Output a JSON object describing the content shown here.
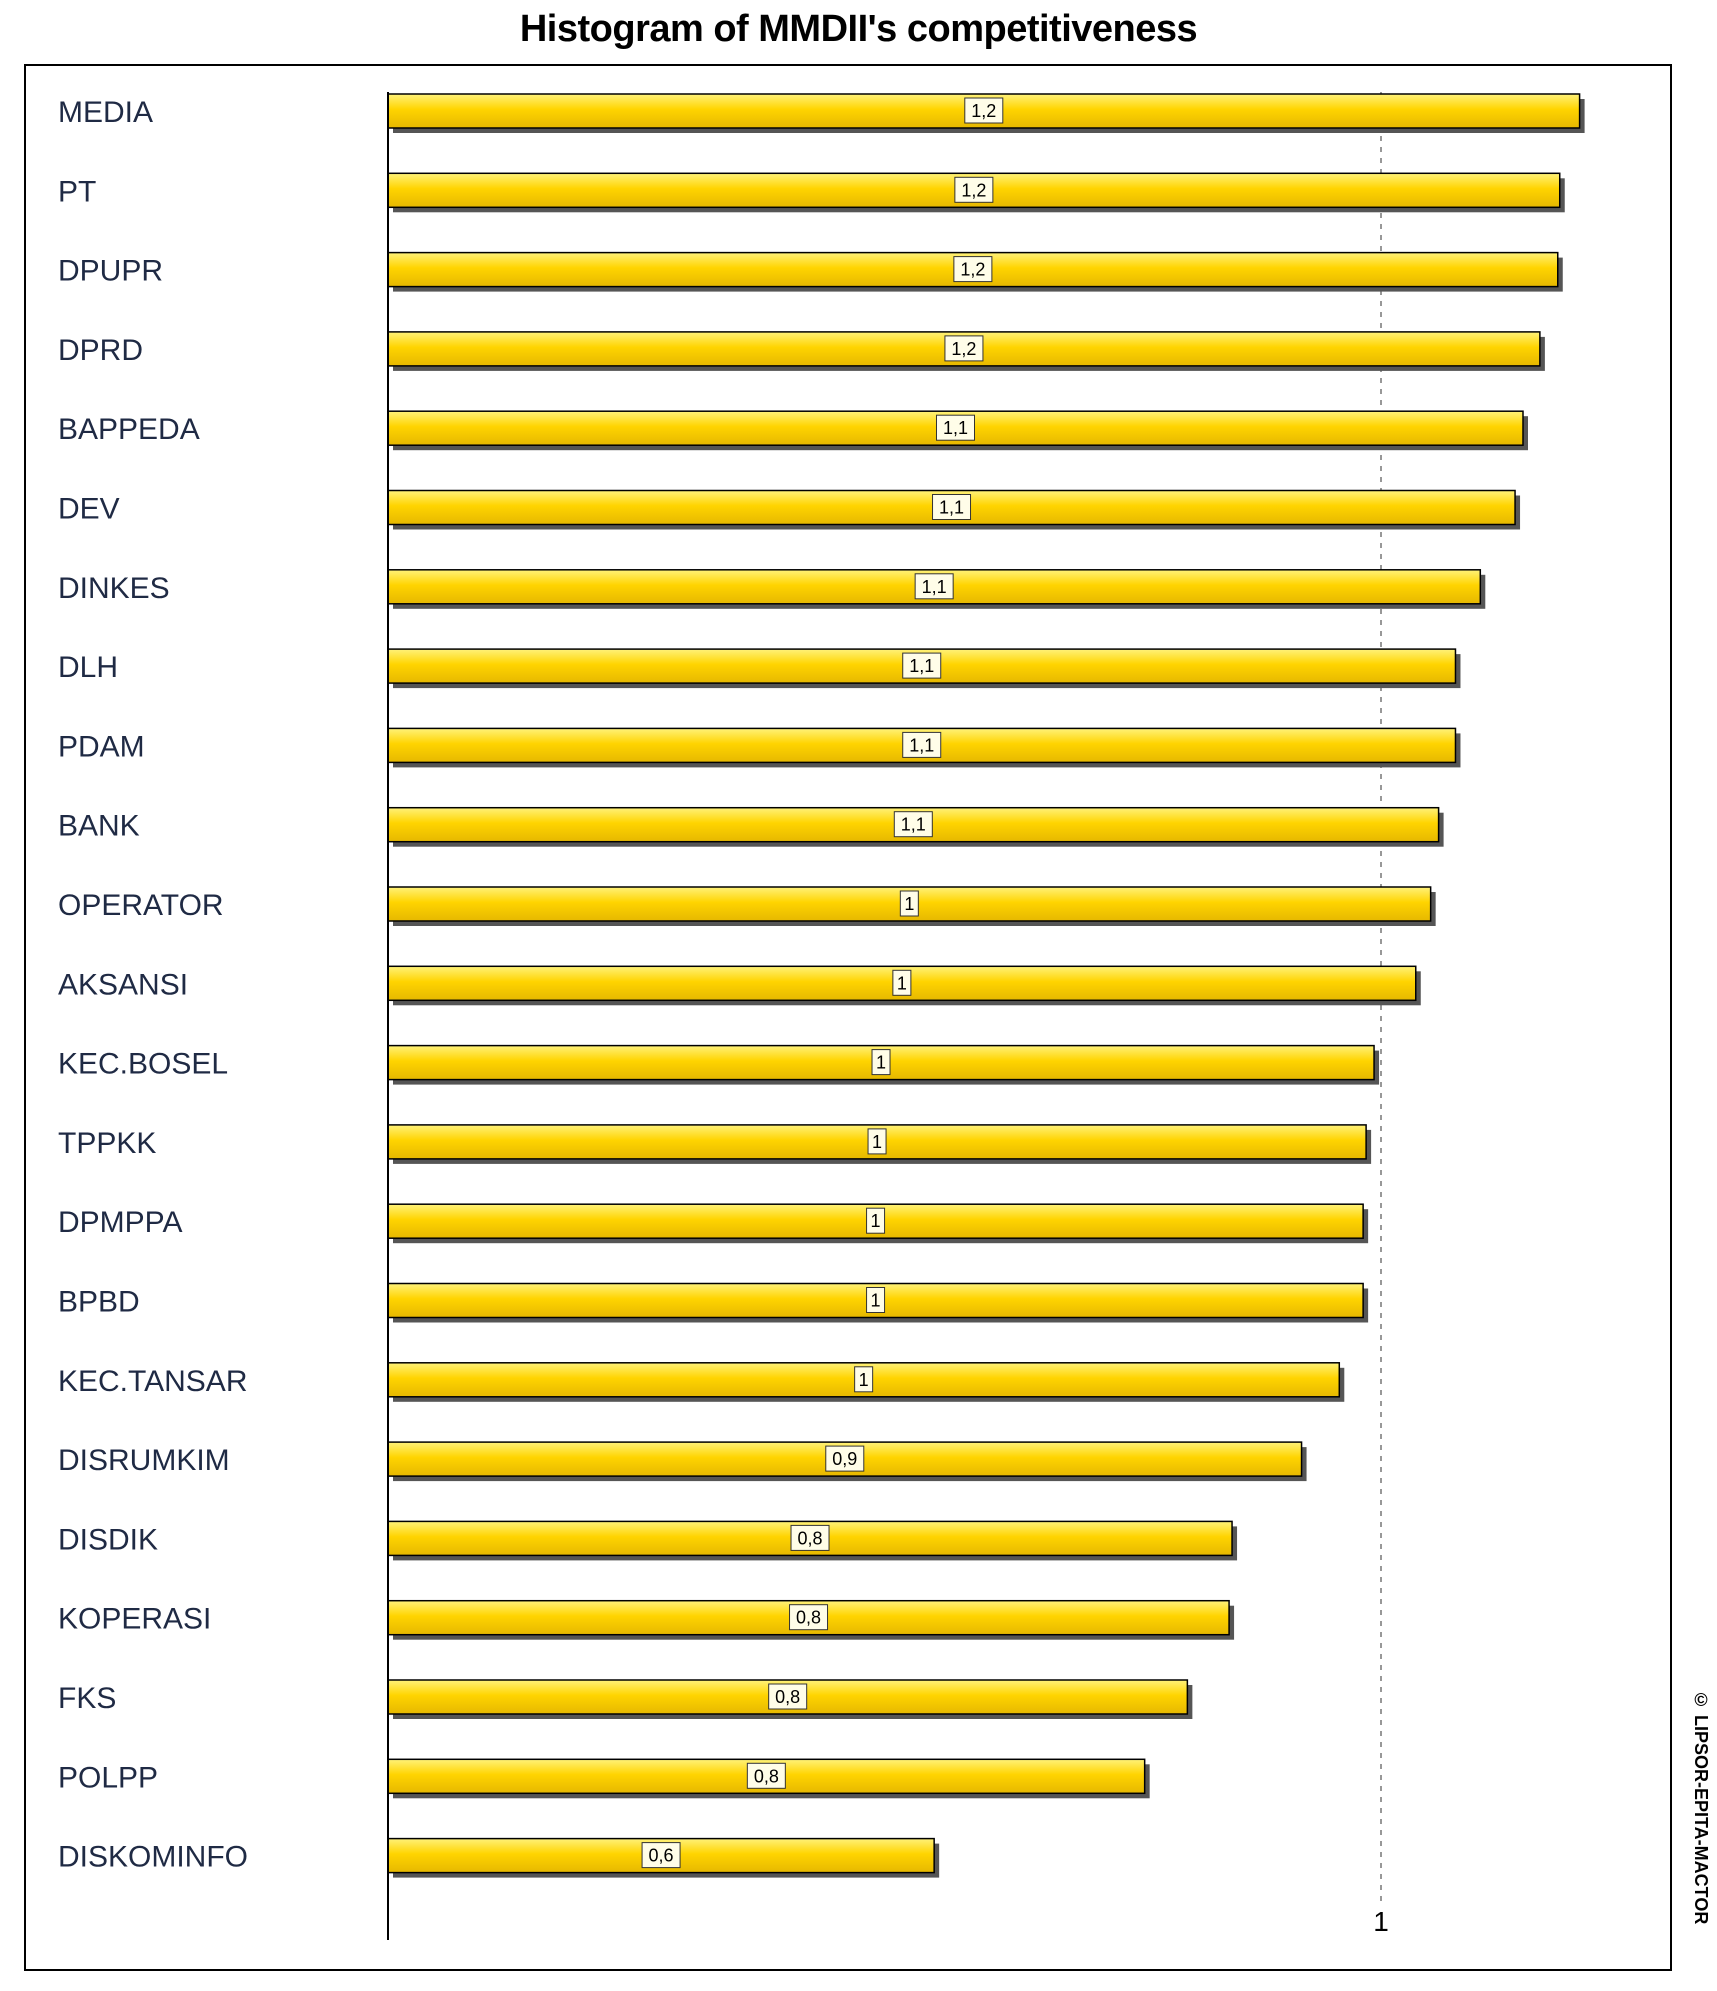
{
  "colors": {
    "bar_fill_light": "#fff27a",
    "bar_fill_mid": "#ffd400",
    "bar_fill_dark": "#e6b800",
    "bar_border": "#000000",
    "bar_shadow": "#555555",
    "label_box": "#fffde8"
  },
  "copyright": "© LIPSOR-EPITA-MACTOR",
  "chart_data": {
    "type": "bar",
    "orientation": "horizontal",
    "title": "Histogram of MMDII's competitiveness",
    "xlabel": "",
    "ylabel": "",
    "xlim": [
      0,
      1.42
    ],
    "x_ticks": [
      1
    ],
    "x_tick_labels": [
      "1"
    ],
    "grid": "dashed vertical line at 1",
    "legend": "none",
    "categories": [
      "MEDIA",
      "PT",
      "DPUPR",
      "DPRD",
      "BAPPEDA",
      "DEV",
      "DINKES",
      "DLH",
      "PDAM",
      "BANK",
      "OPERATOR",
      "AKSANSI",
      "KEC.BOSEL",
      "TPPKK",
      "DPMPPA",
      "BPBD",
      "KEC.TANSAR",
      "DISRUMKIM",
      "DISDIK",
      "KOPERASI",
      "FKS",
      "POLPP",
      "DISKOMINFO"
    ],
    "values": [
      1.2,
      1.18,
      1.178,
      1.16,
      1.143,
      1.135,
      1.1,
      1.075,
      1.075,
      1.058,
      1.05,
      1.035,
      0.993,
      0.985,
      0.982,
      0.982,
      0.958,
      0.92,
      0.85,
      0.847,
      0.805,
      0.762,
      0.55
    ],
    "value_labels": [
      "1,2",
      "1,2",
      "1,2",
      "1,2",
      "1,1",
      "1,1",
      "1,1",
      "1,1",
      "1,1",
      "1,1",
      "1",
      "1",
      "1",
      "1",
      "1",
      "1",
      "1",
      "0,9",
      "0,8",
      "0,8",
      "0,8",
      "0,8",
      "0,6"
    ]
  }
}
